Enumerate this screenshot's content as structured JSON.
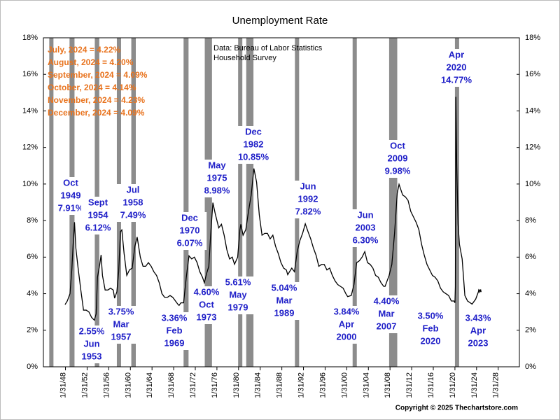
{
  "chart_data": {
    "type": "line",
    "title": "Unemployment Rate",
    "source": [
      "Data:  Bureau of Labor Statistics",
      "Household Survey"
    ],
    "copyright": "Copyright © 2025 Thechartstore.com",
    "notes": [
      "July, 2024 = 4.22%",
      "August, 2024 = 4.20%",
      "September, 2024 = 4.09%",
      "October, 2024 = 4.14%",
      "November, 2024 = 4.23%",
      "December, 2024 = 4.09%"
    ],
    "annotations": [
      [
        "Oct",
        "1949",
        "7.91%"
      ],
      [
        "Sept",
        "1954",
        "6.12%"
      ],
      [
        "Jul",
        "1958",
        "7.49%"
      ],
      [
        "Dec",
        "1970",
        "6.07%"
      ],
      [
        "May",
        "1975",
        "8.98%"
      ],
      [
        "Dec",
        "1982",
        "10.85%"
      ],
      [
        "Jun",
        "1992",
        "7.82%"
      ],
      [
        "Jun",
        "2003",
        "6.30%"
      ],
      [
        "Oct",
        "2009",
        "9.98%"
      ],
      [
        "Apr",
        "2020",
        "14.77%"
      ],
      [
        "2.55%",
        "Jun",
        "1953"
      ],
      [
        "3.75%",
        "Mar",
        "1957"
      ],
      [
        "3.36%",
        "Feb",
        "1969"
      ],
      [
        "4.60%",
        "Oct",
        "1973"
      ],
      [
        "5.61%",
        "May",
        "1979"
      ],
      [
        "5.04%",
        "Mar",
        "1989"
      ],
      [
        "3.84%",
        "Apr",
        "2000"
      ],
      [
        "4.40%",
        "Mar",
        "2007"
      ],
      [
        "3.50%",
        "Feb",
        "2020"
      ],
      [
        "3.43%",
        "Apr",
        "2023"
      ]
    ],
    "color": "#000000",
    "recession_color": "#8c8c8c",
    "grid": false,
    "recessions": [
      [
        "1945-02",
        "1945-10"
      ],
      [
        "1948-11",
        "1949-10"
      ],
      [
        "1953-07",
        "1954-05"
      ],
      [
        "1957-08",
        "1958-04"
      ],
      [
        "1960-04",
        "1961-02"
      ],
      [
        "1969-12",
        "1970-11"
      ],
      [
        "1973-11",
        "1975-03"
      ],
      [
        "1980-01",
        "1980-07"
      ],
      [
        "1981-07",
        "1982-11"
      ],
      [
        "1990-07",
        "1991-03"
      ],
      [
        "2001-03",
        "2001-11"
      ],
      [
        "2007-12",
        "2009-06"
      ],
      [
        "2020-02",
        "2020-04"
      ]
    ],
    "x": [
      "1948-01",
      "1948-06",
      "1948-12",
      "1949-04",
      "1949-07",
      "1949-10",
      "1950-01",
      "1950-06",
      "1950-12",
      "1951-06",
      "1951-12",
      "1952-06",
      "1952-12",
      "1953-06",
      "1953-10",
      "1954-01",
      "1954-06",
      "1954-09",
      "1954-12",
      "1955-06",
      "1955-12",
      "1956-06",
      "1956-12",
      "1957-03",
      "1957-08",
      "1957-12",
      "1958-04",
      "1958-07",
      "1958-12",
      "1959-06",
      "1959-12",
      "1960-06",
      "1960-12",
      "1961-05",
      "1961-12",
      "1962-06",
      "1962-12",
      "1963-06",
      "1963-12",
      "1964-06",
      "1964-12",
      "1965-06",
      "1965-12",
      "1966-06",
      "1966-12",
      "1967-06",
      "1967-12",
      "1968-06",
      "1968-12",
      "1969-02",
      "1969-06",
      "1969-12",
      "1970-06",
      "1970-12",
      "1971-06",
      "1971-12",
      "1972-06",
      "1972-12",
      "1973-06",
      "1973-10",
      "1974-03",
      "1974-08",
      "1974-12",
      "1975-05",
      "1975-10",
      "1976-06",
      "1976-12",
      "1977-06",
      "1977-12",
      "1978-06",
      "1978-12",
      "1979-05",
      "1979-12",
      "1980-05",
      "1980-07",
      "1980-12",
      "1981-06",
      "1981-12",
      "1982-06",
      "1982-12",
      "1983-06",
      "1983-12",
      "1984-06",
      "1984-12",
      "1985-06",
      "1985-12",
      "1986-06",
      "1986-12",
      "1987-06",
      "1987-12",
      "1988-06",
      "1988-12",
      "1989-03",
      "1989-12",
      "1990-06",
      "1990-12",
      "1991-06",
      "1991-12",
      "1992-06",
      "1992-12",
      "1993-06",
      "1993-12",
      "1994-06",
      "1994-12",
      "1995-06",
      "1995-12",
      "1996-06",
      "1996-12",
      "1997-06",
      "1997-12",
      "1998-06",
      "1998-12",
      "1999-06",
      "1999-12",
      "2000-04",
      "2000-12",
      "2001-06",
      "2001-12",
      "2002-06",
      "2002-12",
      "2003-06",
      "2003-12",
      "2004-06",
      "2004-12",
      "2005-06",
      "2005-12",
      "2006-06",
      "2006-12",
      "2007-03",
      "2007-12",
      "2008-06",
      "2008-12",
      "2009-06",
      "2009-10",
      "2010-06",
      "2010-12",
      "2011-06",
      "2011-12",
      "2012-06",
      "2012-12",
      "2013-06",
      "2013-12",
      "2014-06",
      "2014-12",
      "2015-06",
      "2015-12",
      "2016-06",
      "2016-12",
      "2017-06",
      "2017-12",
      "2018-06",
      "2018-12",
      "2019-06",
      "2019-12",
      "2020-02",
      "2020-03",
      "2020-04",
      "2020-06",
      "2020-09",
      "2020-12",
      "2021-06",
      "2021-12",
      "2022-06",
      "2022-12",
      "2023-04",
      "2023-12",
      "2024-06",
      "2024-07",
      "2024-08",
      "2024-09",
      "2024-10",
      "2024-11",
      "2024-12"
    ],
    "values": [
      3.4,
      3.6,
      4.0,
      5.3,
      6.7,
      7.91,
      6.5,
      5.4,
      4.2,
      3.1,
      3.1,
      3.0,
      2.7,
      2.55,
      2.9,
      4.9,
      5.6,
      6.12,
      5.0,
      4.2,
      4.2,
      4.3,
      4.2,
      3.75,
      4.1,
      5.2,
      7.4,
      7.49,
      6.2,
      5.0,
      5.3,
      5.4,
      6.6,
      7.1,
      6.0,
      5.5,
      5.5,
      5.7,
      5.5,
      5.2,
      5.0,
      4.6,
      4.0,
      3.8,
      3.8,
      3.9,
      3.8,
      3.6,
      3.4,
      3.36,
      3.5,
      3.5,
      4.9,
      6.07,
      5.9,
      6.0,
      5.7,
      5.2,
      4.9,
      4.6,
      5.1,
      5.5,
      7.2,
      8.98,
      8.4,
      7.6,
      7.8,
      7.2,
      6.4,
      5.9,
      6.0,
      5.61,
      6.0,
      7.5,
      7.8,
      7.2,
      7.5,
      8.5,
      9.4,
      10.85,
      10.1,
      8.3,
      7.2,
      7.3,
      7.3,
      7.0,
      7.2,
      6.6,
      6.2,
      5.7,
      5.4,
      5.3,
      5.04,
      5.4,
      5.2,
      6.3,
      6.9,
      7.3,
      7.82,
      7.4,
      7.0,
      6.5,
      6.1,
      5.5,
      5.6,
      5.6,
      5.3,
      5.4,
      5.0,
      4.7,
      4.5,
      4.4,
      4.3,
      4.0,
      3.84,
      3.9,
      4.5,
      5.7,
      5.8,
      6.0,
      6.3,
      5.7,
      5.6,
      5.4,
      5.0,
      4.9,
      4.6,
      4.4,
      4.4,
      5.0,
      5.6,
      7.3,
      9.5,
      9.98,
      9.4,
      9.3,
      9.1,
      8.5,
      8.2,
      7.9,
      7.5,
      6.7,
      6.1,
      5.6,
      5.3,
      5.0,
      4.9,
      4.7,
      4.3,
      4.1,
      4.0,
      3.9,
      3.6,
      3.6,
      3.5,
      4.4,
      14.77,
      11.0,
      7.8,
      6.7,
      5.9,
      3.9,
      3.6,
      3.5,
      3.43,
      3.7,
      4.1,
      4.22,
      4.2,
      4.09,
      4.14,
      4.23,
      4.09
    ],
    "xlim": [
      "1944-01",
      "2032-01"
    ],
    "xticks": [
      {
        "value": "1948-01-31",
        "label": "1/31/48"
      },
      {
        "value": "1952-01-31",
        "label": "1/31/52"
      },
      {
        "value": "1956-01-31",
        "label": "1/31/56"
      },
      {
        "value": "1960-01-31",
        "label": "1/31/60"
      },
      {
        "value": "1964-01-31",
        "label": "1/31/64"
      },
      {
        "value": "1968-01-31",
        "label": "1/31/68"
      },
      {
        "value": "1972-01-31",
        "label": "1/31/72"
      },
      {
        "value": "1976-01-31",
        "label": "1/31/76"
      },
      {
        "value": "1980-01-31",
        "label": "1/31/80"
      },
      {
        "value": "1984-01-31",
        "label": "1/31/84"
      },
      {
        "value": "1988-01-31",
        "label": "1/31/88"
      },
      {
        "value": "1992-01-31",
        "label": "1/31/92"
      },
      {
        "value": "1996-01-31",
        "label": "1/31/96"
      },
      {
        "value": "2000-01-31",
        "label": "1/31/00"
      },
      {
        "value": "2004-01-31",
        "label": "1/31/04"
      },
      {
        "value": "2008-01-31",
        "label": "1/31/08"
      },
      {
        "value": "2012-01-31",
        "label": "1/31/12"
      },
      {
        "value": "2016-01-31",
        "label": "1/31/16"
      },
      {
        "value": "2020-01-31",
        "label": "1/31/20"
      },
      {
        "value": "2024-01-31",
        "label": "1/31/24"
      },
      {
        "value": "2028-01-31",
        "label": "1/31/28"
      }
    ],
    "ylim": [
      0,
      18
    ],
    "yticks": [
      {
        "value": 0,
        "label": "0%"
      },
      {
        "value": 2,
        "label": "2%"
      },
      {
        "value": 4,
        "label": "4%"
      },
      {
        "value": 6,
        "label": "6%"
      },
      {
        "value": 8,
        "label": "8%"
      },
      {
        "value": 10,
        "label": "10%"
      },
      {
        "value": 12,
        "label": "12%"
      },
      {
        "value": 14,
        "label": "14%"
      },
      {
        "value": 16,
        "label": "16%"
      },
      {
        "value": 18,
        "label": "18%"
      }
    ]
  }
}
